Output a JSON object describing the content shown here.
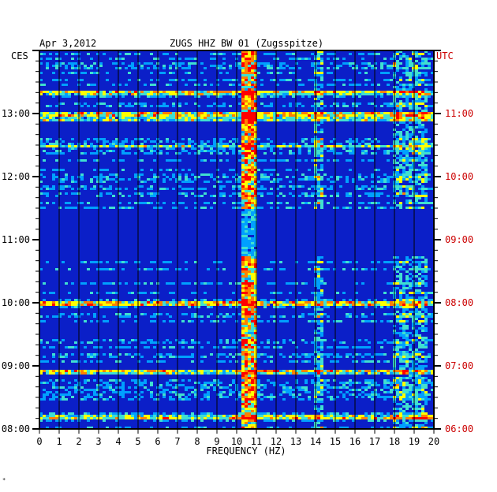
{
  "header": {
    "date": "Apr 3,2012",
    "station": "ZUGS HHZ BW 01 (Zugsspitze)",
    "left_timezone": "CES",
    "right_timezone": "UTC",
    "corner_mark": "*"
  },
  "colors": {
    "background_blue": "#0b1fc8",
    "quiet_blue": "#06109a",
    "utc_label": "#cc0000",
    "grid": "#000000",
    "frame": "#000000"
  },
  "chart_data": {
    "type": "heatmap",
    "title": "ZUGS HHZ BW 01 (Zugsspitze)",
    "xlabel": "FREQUENCY (HZ)",
    "ylabel": "",
    "xlim": [
      0,
      20
    ],
    "x_ticks": [
      "0",
      "1",
      "2",
      "3",
      "4",
      "5",
      "6",
      "7",
      "8",
      "9",
      "10",
      "11",
      "12",
      "13",
      "14",
      "15",
      "16",
      "17",
      "18",
      "19",
      "20"
    ],
    "y_ticks_local": [
      "13:00",
      "12:00",
      "11:00",
      "10:00",
      "09:00",
      "08:00"
    ],
    "y_ticks_utc": [
      "11:00",
      "10:00",
      "09:00",
      "08:00",
      "07:00",
      "06:00"
    ],
    "time_range_local": [
      "08:00",
      "14:00"
    ],
    "time_range_utc": [
      "06:00",
      "12:00"
    ],
    "dominant_frequency_band_hz": [
      10.2,
      10.9
    ],
    "secondary_frequency_band_hz": [
      13.8,
      14.3
    ],
    "high_frequency_activity_hz": [
      17.8,
      19.6
    ],
    "quiet_period_local": [
      "10:45",
      "11:30"
    ],
    "strong_broadband_rows_local": [
      "13:21",
      "13:00",
      "12:56",
      "12:30",
      "10:00",
      "08:55",
      "08:13"
    ],
    "colormap": [
      "#000080",
      "#0b1fc8",
      "#00a0ff",
      "#40e0d0",
      "#ffff00",
      "#ff8000",
      "#ff0000"
    ]
  }
}
